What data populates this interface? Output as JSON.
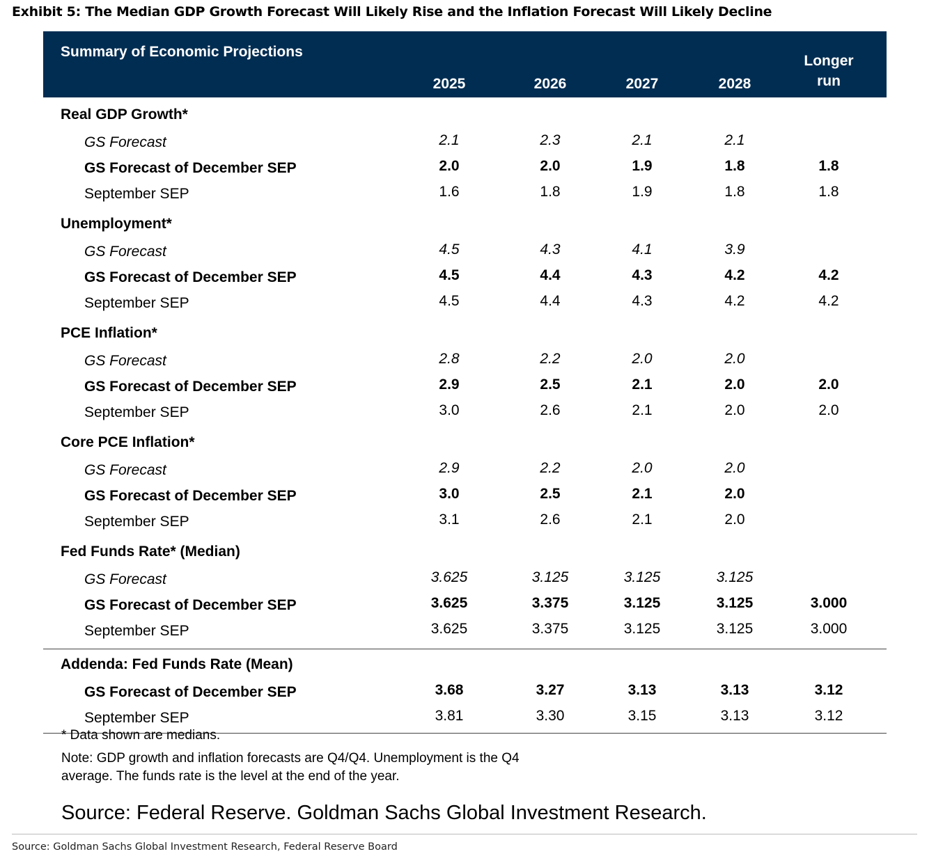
{
  "exhibit_title": "Exhibit 5: The Median GDP Growth Forecast Will Likely Rise and the Inflation Forecast Will Likely Decline",
  "colors": {
    "header_bg": "#022d52",
    "header_text": "#ffffff"
  },
  "chart_data": {
    "type": "table",
    "title": "Summary of Economic Projections",
    "columns": [
      "2025",
      "2026",
      "2027",
      "2028",
      "Longer run"
    ],
    "sections": [
      {
        "title": "Real GDP Growth*",
        "rows": [
          {
            "label": "GS Forecast",
            "style": "italic",
            "values": [
              "2.1",
              "2.3",
              "2.1",
              "2.1",
              ""
            ]
          },
          {
            "label": "GS Forecast of December SEP",
            "style": "bold",
            "values": [
              "2.0",
              "2.0",
              "1.9",
              "1.8",
              "1.8"
            ]
          },
          {
            "label": "September SEP",
            "style": "normal",
            "values": [
              "1.6",
              "1.8",
              "1.9",
              "1.8",
              "1.8"
            ]
          }
        ]
      },
      {
        "title": "Unemployment*",
        "rows": [
          {
            "label": "GS Forecast",
            "style": "italic",
            "values": [
              "4.5",
              "4.3",
              "4.1",
              "3.9",
              ""
            ]
          },
          {
            "label": "GS Forecast of December SEP",
            "style": "bold",
            "values": [
              "4.5",
              "4.4",
              "4.3",
              "4.2",
              "4.2"
            ]
          },
          {
            "label": "September SEP",
            "style": "normal",
            "values": [
              "4.5",
              "4.4",
              "4.3",
              "4.2",
              "4.2"
            ]
          }
        ]
      },
      {
        "title": "PCE Inflation*",
        "rows": [
          {
            "label": "GS Forecast",
            "style": "italic",
            "values": [
              "2.8",
              "2.2",
              "2.0",
              "2.0",
              ""
            ]
          },
          {
            "label": "GS Forecast of December SEP",
            "style": "bold",
            "values": [
              "2.9",
              "2.5",
              "2.1",
              "2.0",
              "2.0"
            ]
          },
          {
            "label": "September SEP",
            "style": "normal",
            "values": [
              "3.0",
              "2.6",
              "2.1",
              "2.0",
              "2.0"
            ]
          }
        ]
      },
      {
        "title": "Core PCE Inflation*",
        "rows": [
          {
            "label": "GS Forecast",
            "style": "italic",
            "values": [
              "2.9",
              "2.2",
              "2.0",
              "2.0",
              ""
            ]
          },
          {
            "label": "GS Forecast of December SEP",
            "style": "bold",
            "values": [
              "3.0",
              "2.5",
              "2.1",
              "2.0",
              ""
            ]
          },
          {
            "label": "September SEP",
            "style": "normal",
            "values": [
              "3.1",
              "2.6",
              "2.1",
              "2.0",
              ""
            ]
          }
        ]
      },
      {
        "title": "Fed Funds Rate* (Median)",
        "rows": [
          {
            "label": "GS Forecast",
            "style": "italic",
            "values": [
              "3.625",
              "3.125",
              "3.125",
              "3.125",
              ""
            ]
          },
          {
            "label": "GS Forecast of December SEP",
            "style": "bold",
            "values": [
              "3.625",
              "3.375",
              "3.125",
              "3.125",
              "3.000"
            ]
          },
          {
            "label": "September SEP",
            "style": "normal",
            "values": [
              "3.625",
              "3.375",
              "3.125",
              "3.125",
              "3.000"
            ]
          }
        ]
      },
      {
        "title": "Addenda: Fed Funds Rate (Mean)",
        "ruled": true,
        "rows": [
          {
            "label": "GS Forecast of December SEP",
            "style": "bold",
            "values": [
              "3.68",
              "3.27",
              "3.13",
              "3.13",
              "3.12"
            ]
          },
          {
            "label": "September SEP",
            "style": "normal",
            "values": [
              "3.81",
              "3.30",
              "3.15",
              "3.13",
              "3.12"
            ]
          }
        ]
      }
    ]
  },
  "footnotes": {
    "medians": "* Data shown are medians.",
    "note_line1": "Note: GDP growth and inflation forecasts are Q4/Q4.  Unemployment is the Q4",
    "note_line2": "average.  The funds rate is the level at the end of the year."
  },
  "source_large": "Source: Federal Reserve. Goldman Sachs Global Investment Research.",
  "source_small": "Source: Goldman Sachs Global Investment Research, Federal Reserve Board"
}
